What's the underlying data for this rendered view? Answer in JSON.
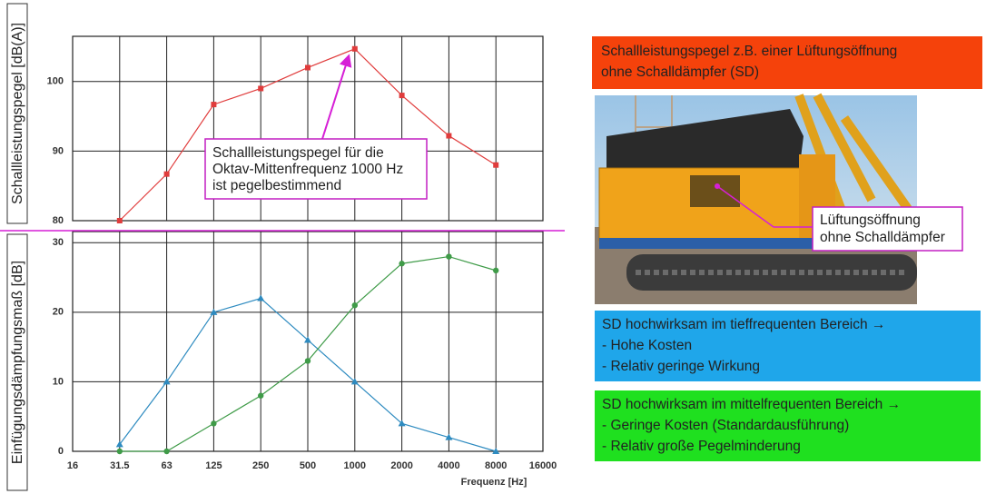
{
  "chart_data": [
    {
      "type": "line",
      "y_label": "Schallleistungspegel [dB(A)]",
      "annotation": [
        "Schallleistungspegel für die",
        "Oktav-Mittenfrequenz 1000 Hz",
        "ist pegelbestimmend"
      ],
      "ylim": [
        80,
        106.5
      ],
      "yticks": [
        80,
        90,
        100
      ],
      "grid": true,
      "series": [
        {
          "color": "#e03c3c",
          "marker": "square",
          "values": [
            null,
            80,
            86.7,
            96.7,
            99,
            102,
            104.7,
            98,
            92.2,
            88,
            null
          ]
        }
      ]
    },
    {
      "type": "line",
      "y_label": "Einfügungsdämpfungsmaß [dB]",
      "x_label": "Frequenz [Hz]",
      "categories": [
        "16",
        "31.5",
        "63",
        "125",
        "250",
        "500",
        "1000",
        "2000",
        "4000",
        "8000",
        "16000"
      ],
      "ylim": [
        0,
        31.6
      ],
      "yticks": [
        0,
        10,
        20,
        30
      ],
      "grid": true,
      "series": [
        {
          "color": "#2e8bc0",
          "marker": "triangle",
          "values": [
            null,
            1,
            10,
            20,
            22,
            16,
            10,
            4,
            2,
            0,
            null
          ]
        },
        {
          "color": "#3f9b48",
          "marker": "circle",
          "values": [
            null,
            0,
            0,
            4,
            8,
            13,
            21,
            27,
            28,
            26,
            null
          ]
        }
      ]
    }
  ],
  "panels": {
    "red_box": [
      "Schallleistungspegel z.B. einer Lüftungsöffnung",
      "ohne Schalldämpfer (SD)"
    ],
    "photo_label": [
      "Lüftungsöffnung",
      "ohne Schalldämpfer"
    ],
    "blue_box": [
      "SD hochwirksam im tieffrequenten Bereich →",
      "- Hohe Kosten",
      "- Relativ geringe Wirkung"
    ],
    "green_box": [
      "SD hochwirksam im mittelfrequenten Bereich →",
      "- Geringe Kosten (Standardausführung)",
      "- Relativ große Pegelminderung"
    ]
  }
}
